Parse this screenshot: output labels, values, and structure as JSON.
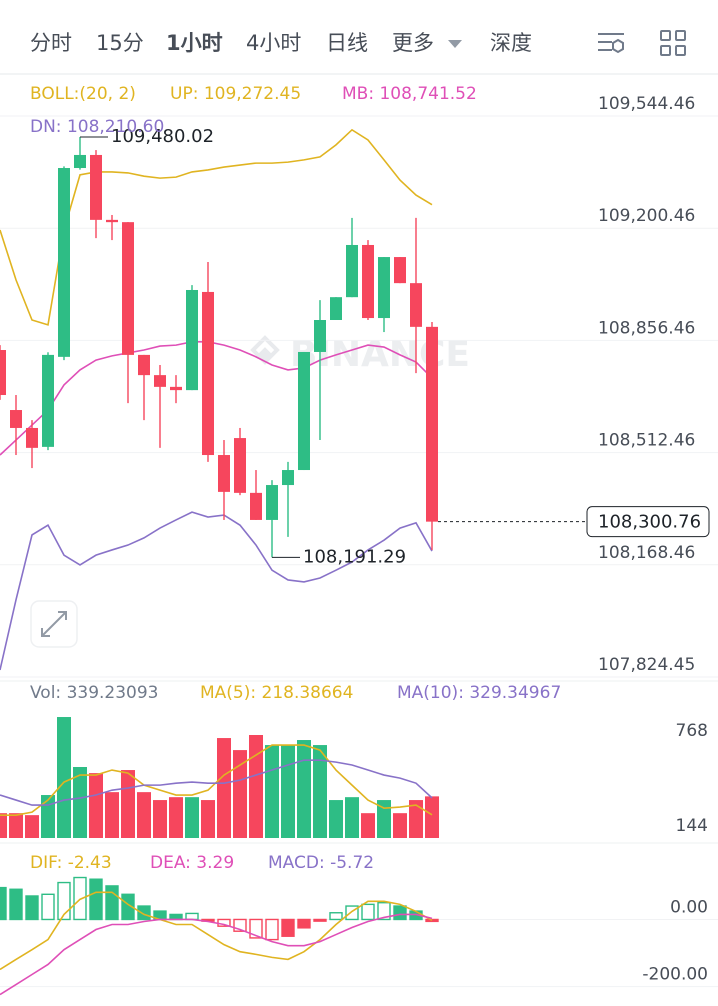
{
  "header": {
    "tabs": [
      "分时",
      "15分",
      "1小时",
      "4小时",
      "日线",
      "更多",
      "深度"
    ],
    "active": 2
  },
  "chart_data": [
    {
      "type": "candlestick",
      "title": "BOLL:(20, 2)",
      "watermark": "BINANCE",
      "grid": true,
      "up_color": "#2ebd85",
      "down_color": "#f6465d",
      "candles": [
        {
          "open": 108827,
          "high": 108842,
          "low": 108674,
          "close": 108689
        },
        {
          "open": 108643,
          "high": 108689,
          "low": 108505,
          "close": 108588
        },
        {
          "open": 108588,
          "high": 108612,
          "low": 108465,
          "close": 108527
        },
        {
          "open": 108530,
          "high": 108820,
          "low": 108520,
          "close": 108812
        },
        {
          "open": 108806,
          "high": 109390,
          "low": 108796,
          "close": 109385
        },
        {
          "open": 109385,
          "high": 109480.02,
          "low": 109380,
          "close": 109425
        },
        {
          "open": 109425,
          "high": 109440,
          "low": 109170,
          "close": 109226
        },
        {
          "open": 109226,
          "high": 109241,
          "low": 109164,
          "close": 109219
        },
        {
          "open": 109219,
          "high": 109219,
          "low": 108664,
          "close": 108812
        },
        {
          "open": 108812,
          "high": 108812,
          "low": 108612,
          "close": 108750
        },
        {
          "open": 108750,
          "high": 108781,
          "low": 108527,
          "close": 108714
        },
        {
          "open": 108714,
          "high": 108750,
          "low": 108664,
          "close": 108704
        },
        {
          "open": 108704,
          "high": 109026,
          "low": 108704,
          "close": 109011
        },
        {
          "open": 109005,
          "high": 109097,
          "low": 108484,
          "close": 108505
        },
        {
          "open": 108505,
          "high": 108551,
          "low": 108306,
          "close": 108392
        },
        {
          "open": 108557,
          "high": 108588,
          "low": 108382,
          "close": 108389
        },
        {
          "open": 108389,
          "high": 108459,
          "low": 108306,
          "close": 108306
        },
        {
          "open": 108306,
          "high": 108428,
          "low": 108191.29,
          "close": 108413
        },
        {
          "open": 108413,
          "high": 108484,
          "low": 108254,
          "close": 108459
        },
        {
          "open": 108459,
          "high": 108821,
          "low": 108459,
          "close": 108821
        },
        {
          "open": 108821,
          "high": 108980,
          "low": 108551,
          "close": 108919
        },
        {
          "open": 108919,
          "high": 108989,
          "low": 108925,
          "close": 108989
        },
        {
          "open": 108989,
          "high": 109232,
          "low": 108989,
          "close": 109149
        },
        {
          "open": 109149,
          "high": 109164,
          "low": 108919,
          "close": 108925
        },
        {
          "open": 108925,
          "high": 109112,
          "low": 108882,
          "close": 109112
        },
        {
          "open": 109112,
          "high": 109112,
          "low": 109032,
          "close": 109032
        },
        {
          "open": 109032,
          "high": 109232,
          "low": 108756,
          "close": 108898
        },
        {
          "open": 108898,
          "high": 108913,
          "low": 108214,
          "close": 108300.76
        }
      ],
      "series": [
        {
          "name": "UP: 109,272.45",
          "color": "#e0b421",
          "values": [
            109195,
            109042,
            108919,
            108904,
            109195,
            109364,
            109373,
            109373,
            109370,
            109360,
            109354,
            109357,
            109373,
            109379,
            109388,
            109394,
            109400,
            109400,
            109403,
            109410,
            109419,
            109456,
            109502,
            109471,
            109410,
            109348,
            109302,
            109272.45
          ]
        },
        {
          "name": "MB: 108,741.52",
          "color": "#df4fb7",
          "values": [
            108505,
            108551,
            108597,
            108643,
            108720,
            108766,
            108796,
            108809,
            108818,
            108827,
            108839,
            108842,
            108852,
            108852,
            108842,
            108827,
            108806,
            108781,
            108766,
            108772,
            108796,
            108812,
            108827,
            108842,
            108836,
            108812,
            108790,
            108741.52
          ]
        },
        {
          "name": "DN: 108,210.60",
          "color": "#8872c8",
          "values": [
            107846,
            108061,
            108260,
            108290,
            108198,
            108168,
            108198,
            108214,
            108229,
            108251,
            108281,
            108306,
            108330,
            108315,
            108321,
            108290,
            108229,
            108152,
            108122,
            108116,
            108128,
            108152,
            108177,
            108214,
            108244,
            108281,
            108297,
            108210.6
          ]
        }
      ],
      "ylim": [
        107815.25,
        109654.84
      ],
      "yticks": [
        {
          "value": 109544.46,
          "label": "109,544.46"
        },
        {
          "value": 109200.46,
          "label": "109,200.46"
        },
        {
          "value": 108856.46,
          "label": "108,856.46"
        },
        {
          "value": 108512.46,
          "label": "108,512.46"
        },
        {
          "value": 108168.46,
          "label": "108,168.46"
        },
        {
          "value": 107824.45,
          "label": "107,824.45"
        }
      ],
      "last_price": {
        "value": 108300.76,
        "label": "108,300.76"
      },
      "annotations": [
        {
          "value": 109480.02,
          "label": "109,480.02"
        },
        {
          "value": 108191.29,
          "label": "108,191.29"
        }
      ]
    },
    {
      "type": "bar",
      "title": "Vol: 339.23093",
      "values": [
        229,
        229,
        216,
        348,
        860,
        532,
        492,
        367,
        512,
        367,
        315,
        334,
        334,
        315,
        722,
        643,
        742,
        676,
        676,
        709,
        676,
        315,
        334,
        229,
        315,
        229,
        315,
        339.23093
      ],
      "series": [
        {
          "name": "MA(5): 218.38664",
          "color": "#e0b421",
          "values": [
            216,
            216,
            236,
            315,
            433,
            479,
            479,
            512,
            492,
            413,
            380,
            348,
            348,
            380,
            479,
            545,
            610,
            676,
            676,
            676,
            643,
            512,
            413,
            315,
            262,
            269,
            282,
            218.38664
          ]
        },
        {
          "name": "MA(10): 329.34967",
          "color": "#8872c8",
          "values": [
            348,
            315,
            282,
            282,
            315,
            328,
            348,
            380,
            394,
            413,
            413,
            426,
            433,
            426,
            426,
            446,
            479,
            512,
            545,
            577,
            577,
            564,
            545,
            512,
            479,
            459,
            426,
            329.34967
          ]
        }
      ],
      "ylim": [
        66,
        1103
      ],
      "yticks": [
        768,
        144
      ]
    },
    {
      "type": "macd",
      "title": "MACD: -5.72",
      "title_color": "#8872c8",
      "values": [
        95,
        90,
        70,
        75,
        110,
        125,
        120,
        100,
        75,
        40,
        25,
        15,
        18,
        -5,
        -20,
        -35,
        -55,
        -60,
        -50,
        -25,
        -5,
        20,
        40,
        45,
        50,
        40,
        25,
        -5.72
      ],
      "series": [
        {
          "name": "DIF: -2.43",
          "color": "#e0b421",
          "values": [
            -149,
            -119,
            -90,
            -60,
            15,
            60,
            81,
            81,
            45,
            15,
            0,
            -15,
            -15,
            -45,
            -75,
            -96,
            -104,
            -113,
            -119,
            -96,
            -60,
            -15,
            24,
            54,
            54,
            45,
            24,
            -2.43
          ]
        },
        {
          "name": "DEA: 3.29",
          "color": "#df4fb7",
          "values": [
            -224,
            -194,
            -164,
            -134,
            -90,
            -60,
            -30,
            -15,
            -15,
            -6,
            0,
            0,
            0,
            -6,
            -15,
            -30,
            -48,
            -66,
            -78,
            -78,
            -66,
            -45,
            -24,
            -6,
            6,
            15,
            15,
            3.29
          ]
        }
      ],
      "ylim": [
        -240,
        210
      ],
      "yticks": [
        {
          "value": 0,
          "label": "0.00"
        },
        {
          "value": -200,
          "label": "-200.00"
        }
      ]
    }
  ]
}
